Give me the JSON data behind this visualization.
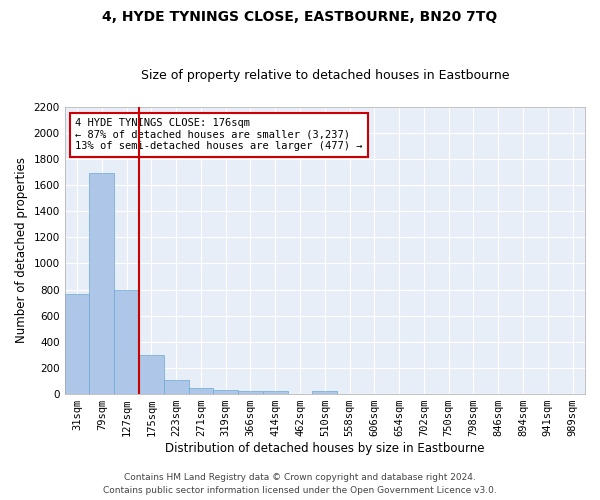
{
  "title": "4, HYDE TYNINGS CLOSE, EASTBOURNE, BN20 7TQ",
  "subtitle": "Size of property relative to detached houses in Eastbourne",
  "xlabel": "Distribution of detached houses by size in Eastbourne",
  "ylabel": "Number of detached properties",
  "categories": [
    "31sqm",
    "79sqm",
    "127sqm",
    "175sqm",
    "223sqm",
    "271sqm",
    "319sqm",
    "366sqm",
    "414sqm",
    "462sqm",
    "510sqm",
    "558sqm",
    "606sqm",
    "654sqm",
    "702sqm",
    "750sqm",
    "798sqm",
    "846sqm",
    "894sqm",
    "941sqm",
    "989sqm"
  ],
  "values": [
    770,
    1690,
    795,
    300,
    110,
    43,
    32,
    27,
    23,
    0,
    20,
    0,
    0,
    0,
    0,
    0,
    0,
    0,
    0,
    0,
    0
  ],
  "bar_color": "#aec6e8",
  "bar_edge_color": "#6aaad4",
  "background_color": "#e8eef8",
  "grid_color": "#ffffff",
  "vline_color": "#cc0000",
  "annotation_line1": "4 HYDE TYNINGS CLOSE: 176sqm",
  "annotation_line2": "← 87% of detached houses are smaller (3,237)",
  "annotation_line3": "13% of semi-detached houses are larger (477) →",
  "annotation_box_color": "#cc0000",
  "ylim": [
    0,
    2200
  ],
  "yticks": [
    0,
    200,
    400,
    600,
    800,
    1000,
    1200,
    1400,
    1600,
    1800,
    2000,
    2200
  ],
  "footer_line1": "Contains HM Land Registry data © Crown copyright and database right 2024.",
  "footer_line2": "Contains public sector information licensed under the Open Government Licence v3.0.",
  "title_fontsize": 10,
  "subtitle_fontsize": 9,
  "xlabel_fontsize": 8.5,
  "ylabel_fontsize": 8.5,
  "tick_fontsize": 7.5,
  "annotation_fontsize": 7.5,
  "footer_fontsize": 6.5
}
